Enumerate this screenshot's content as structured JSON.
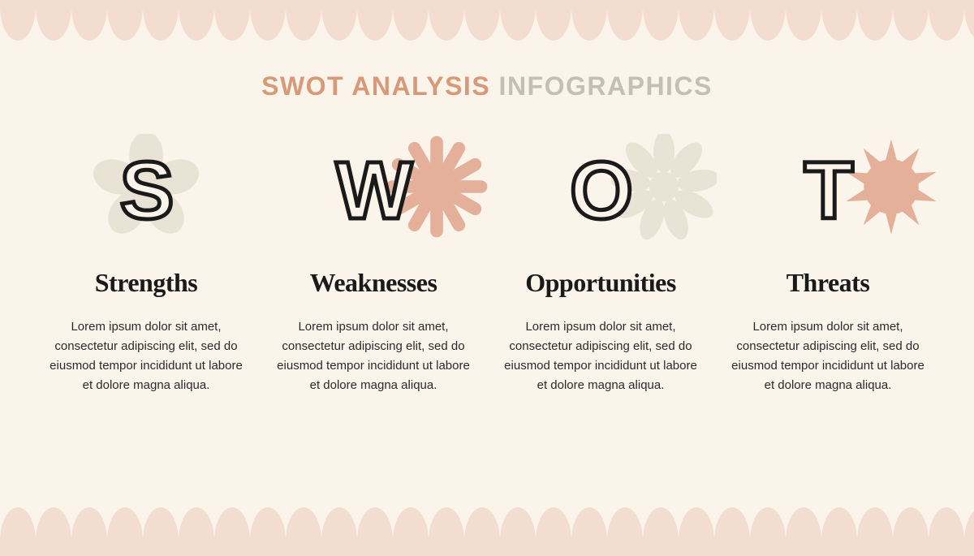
{
  "type": "infographic",
  "background_color": "#faf4ea",
  "border_color": "#f2ddd0",
  "title": {
    "part1": "SWOT ANALYSIS",
    "part2": "INFOGRAPHICS",
    "part1_color": "#d89978",
    "part2_color": "#c4bfb5",
    "fontsize": 32
  },
  "quads": [
    {
      "letter": "S",
      "heading": "Strengths",
      "body": "Lorem ipsum dolor sit amet, consectetur adipiscing elit, sed do eiusmod tempor incididunt ut labore et dolore magna aliqua.",
      "shape_type": "flower5",
      "shape_color": "#e9e3d6"
    },
    {
      "letter": "W",
      "heading": "Weaknesses",
      "body": "Lorem ipsum dolor sit amet, consectetur adipiscing elit, sed do eiusmod tempor incididunt ut labore et dolore magna aliqua.",
      "shape_type": "burst",
      "shape_color": "#e4b09a"
    },
    {
      "letter": "O",
      "heading": "Opportunities",
      "body": "Lorem ipsum dolor sit amet, consectetur adipiscing elit, sed do eiusmod tempor incididunt ut labore et dolore magna aliqua.",
      "shape_type": "daisy",
      "shape_color": "#e9e3d6"
    },
    {
      "letter": "T",
      "heading": "Threats",
      "body": "Lorem ipsum dolor sit amet, consectetur adipiscing elit, sed do eiusmod tempor incididunt ut labore et dolore magna aliqua.",
      "shape_type": "star",
      "shape_color": "#e4b09a"
    }
  ],
  "letter_stroke": "#1a1a1a",
  "letter_fontsize": 100,
  "heading_fontsize": 32,
  "body_fontsize": 15
}
